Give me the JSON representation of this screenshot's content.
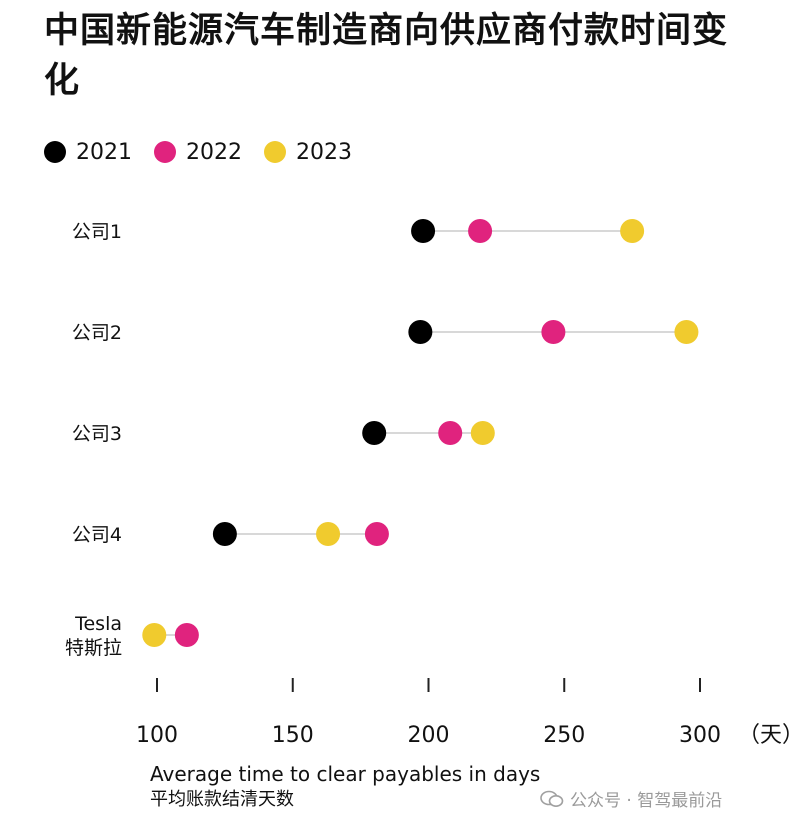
{
  "title": "中国新能源汽车制造商向供应商付款时间变化",
  "legend": [
    {
      "label": "2021",
      "color": "#000000"
    },
    {
      "label": "2022",
      "color": "#e0237e"
    },
    {
      "label": "2023",
      "color": "#f0cb2e"
    }
  ],
  "chart_data": {
    "type": "scatter",
    "subtype": "dot-plot",
    "categories": [
      "公司1",
      "公司2",
      "公司3",
      "公司4",
      "Tesla\n特斯拉"
    ],
    "series": [
      {
        "name": "2021",
        "color": "#000000",
        "values": [
          198,
          197,
          180,
          125,
          null
        ]
      },
      {
        "name": "2022",
        "color": "#e0237e",
        "values": [
          219,
          246,
          208,
          181,
          111
        ]
      },
      {
        "name": "2023",
        "color": "#f0cb2e",
        "values": [
          275,
          295,
          220,
          163,
          99
        ]
      }
    ],
    "x_ticks": [
      100,
      150,
      200,
      250,
      300
    ],
    "x_unit": "（天）",
    "xlim": [
      100,
      300
    ],
    "xlabel": "Average time to clear payables in days",
    "xlabel_cn": "平均账款结清天数",
    "grid": false,
    "legend_position": "top-left"
  },
  "watermark": "公众号 · 智驾最前沿"
}
